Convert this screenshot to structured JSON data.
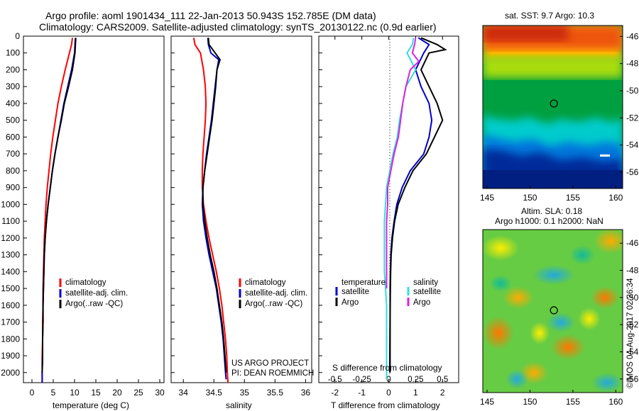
{
  "title_line1": "Argo profile: aoml 1901434_111 22-Jan-2013 50.943S 152.785E (DM data)",
  "title_line2": "Climatology: CARS2009. Satellite-adjusted climatology: synTS_20130122.nc (0.9d earlier)",
  "credit_line1": "US ARGO PROJECT",
  "credit_line2": "PI: DEAN ROEMMICH",
  "watermark": "©IMOS 04-Aug-2017 02:36:34",
  "colors": {
    "climatology": "#ff0000",
    "satellite": "#0000cc",
    "argo": "#000000",
    "s_satellite": "#33dddd",
    "s_argo": "#dd22dd"
  },
  "chart_data": [
    {
      "type": "line",
      "xlabel": "temperature (deg C)",
      "ylabel": "",
      "xlim": [
        -2,
        31
      ],
      "ylim": [
        2060,
        0
      ],
      "xticks": [
        0,
        5,
        10,
        15,
        20,
        25,
        30
      ],
      "yticks": [
        0,
        100,
        200,
        300,
        400,
        500,
        600,
        700,
        800,
        900,
        1000,
        1100,
        1200,
        1300,
        1400,
        1500,
        1600,
        1700,
        1800,
        1900,
        2000
      ],
      "legend": [
        "climatology",
        "satellite-adj. clim.",
        "Argo(..raw -QC)"
      ],
      "series": [
        {
          "name": "climatology",
          "points": [
            [
              9.5,
              10
            ],
            [
              9.3,
              50
            ],
            [
              8.8,
              100
            ],
            [
              7.8,
              200
            ],
            [
              6.9,
              300
            ],
            [
              6.1,
              400
            ],
            [
              5.5,
              500
            ],
            [
              4.9,
              600
            ],
            [
              4.4,
              700
            ],
            [
              4.0,
              800
            ],
            [
              3.6,
              900
            ],
            [
              3.3,
              1000
            ],
            [
              3.1,
              1100
            ],
            [
              2.9,
              1200
            ],
            [
              2.8,
              1300
            ],
            [
              2.7,
              1400
            ],
            [
              2.6,
              1500
            ],
            [
              2.6,
              1600
            ],
            [
              2.5,
              1700
            ],
            [
              2.5,
              1800
            ],
            [
              2.4,
              1900
            ],
            [
              2.4,
              2000
            ],
            [
              2.4,
              2060
            ]
          ]
        },
        {
          "name": "satellite-adj. clim.",
          "points": [
            [
              10.2,
              10
            ],
            [
              10.1,
              50
            ],
            [
              10.0,
              100
            ],
            [
              9.3,
              200
            ],
            [
              8.4,
              300
            ],
            [
              7.5,
              400
            ],
            [
              6.8,
              500
            ],
            [
              6.1,
              600
            ],
            [
              5.4,
              700
            ],
            [
              4.8,
              800
            ],
            [
              4.3,
              900
            ],
            [
              3.8,
              1000
            ],
            [
              3.4,
              1100
            ],
            [
              3.1,
              1200
            ],
            [
              2.9,
              1300
            ],
            [
              2.8,
              1400
            ],
            [
              2.7,
              1500
            ],
            [
              2.6,
              1600
            ],
            [
              2.6,
              1700
            ],
            [
              2.5,
              1800
            ],
            [
              2.5,
              1900
            ],
            [
              2.4,
              2000
            ],
            [
              2.4,
              2060
            ]
          ]
        },
        {
          "name": "Argo(..raw -QC)",
          "points": [
            [
              10.3,
              10
            ],
            [
              10.2,
              50
            ],
            [
              10.1,
              100
            ],
            [
              9.5,
              200
            ],
            [
              8.6,
              300
            ],
            [
              7.6,
              400
            ],
            [
              6.9,
              500
            ],
            [
              6.1,
              600
            ],
            [
              5.4,
              700
            ],
            [
              4.8,
              800
            ],
            [
              4.3,
              900
            ],
            [
              3.8,
              1000
            ],
            [
              3.4,
              1100
            ],
            [
              3.1,
              1200
            ],
            [
              2.9,
              1300
            ],
            [
              2.8,
              1400
            ],
            [
              2.7,
              1500
            ],
            [
              2.6,
              1600
            ],
            [
              2.6,
              1700
            ],
            [
              2.5,
              1800
            ],
            [
              2.5,
              1900
            ],
            [
              2.4,
              2000
            ]
          ]
        }
      ]
    },
    {
      "type": "line",
      "xlabel": "salinity",
      "xlim": [
        33.8,
        36.1
      ],
      "ylim": [
        2060,
        0
      ],
      "xticks": [
        34,
        34.5,
        35,
        35.5,
        36
      ],
      "legend": [
        "climatology",
        "satellite-adj. clim.",
        "Argo(..raw -QC)"
      ],
      "series": [
        {
          "name": "climatology",
          "points": [
            [
              34.17,
              10
            ],
            [
              34.19,
              50
            ],
            [
              34.28,
              100
            ],
            [
              34.33,
              200
            ],
            [
              34.36,
              300
            ],
            [
              34.37,
              400
            ],
            [
              34.36,
              500
            ],
            [
              34.34,
              600
            ],
            [
              34.32,
              700
            ],
            [
              34.31,
              800
            ],
            [
              34.31,
              900
            ],
            [
              34.33,
              1000
            ],
            [
              34.37,
              1100
            ],
            [
              34.42,
              1200
            ],
            [
              34.48,
              1300
            ],
            [
              34.54,
              1400
            ],
            [
              34.59,
              1500
            ],
            [
              34.63,
              1600
            ],
            [
              34.66,
              1700
            ],
            [
              34.69,
              1800
            ],
            [
              34.71,
              1900
            ],
            [
              34.72,
              2000
            ],
            [
              34.73,
              2060
            ]
          ]
        },
        {
          "name": "satellite-adj. clim.",
          "points": [
            [
              34.4,
              10
            ],
            [
              34.41,
              50
            ],
            [
              34.45,
              100
            ],
            [
              34.58,
              140
            ],
            [
              34.55,
              200
            ],
            [
              34.52,
              300
            ],
            [
              34.49,
              400
            ],
            [
              34.46,
              500
            ],
            [
              34.42,
              600
            ],
            [
              34.38,
              700
            ],
            [
              34.35,
              800
            ],
            [
              34.32,
              900
            ],
            [
              34.31,
              1000
            ],
            [
              34.33,
              1100
            ],
            [
              34.37,
              1200
            ],
            [
              34.42,
              1300
            ],
            [
              34.48,
              1400
            ],
            [
              34.54,
              1500
            ],
            [
              34.58,
              1600
            ],
            [
              34.62,
              1700
            ],
            [
              34.65,
              1800
            ],
            [
              34.67,
              1900
            ],
            [
              34.69,
              2000
            ],
            [
              34.7,
              2040
            ]
          ]
        },
        {
          "name": "Argo(..raw -QC)",
          "points": [
            [
              34.41,
              10
            ],
            [
              34.42,
              50
            ],
            [
              34.52,
              100
            ],
            [
              34.6,
              140
            ],
            [
              34.55,
              200
            ],
            [
              34.53,
              300
            ],
            [
              34.5,
              400
            ],
            [
              34.47,
              500
            ],
            [
              34.43,
              600
            ],
            [
              34.39,
              700
            ],
            [
              34.35,
              800
            ],
            [
              34.32,
              900
            ],
            [
              34.32,
              1000
            ],
            [
              34.35,
              1100
            ],
            [
              34.39,
              1200
            ],
            [
              34.44,
              1300
            ],
            [
              34.5,
              1400
            ],
            [
              34.55,
              1500
            ],
            [
              34.59,
              1600
            ],
            [
              34.63,
              1700
            ],
            [
              34.66,
              1800
            ],
            [
              34.68,
              1900
            ],
            [
              34.7,
              2000
            ]
          ]
        }
      ]
    },
    {
      "type": "line",
      "xlabel": "T difference from climatology",
      "top_label": "S difference from climatology",
      "xlim": [
        -2.6,
        2.6
      ],
      "ylim": [
        2060,
        0
      ],
      "xticks_T": [
        -2,
        -1,
        0,
        1,
        2
      ],
      "xticks_S": [
        -0.5,
        -0.25,
        0,
        0.25,
        0.5
      ],
      "legend_headers": [
        "temperature",
        "salinity"
      ],
      "legend": [
        "satellite",
        "Argo",
        "satellite",
        "Argo"
      ],
      "series": [
        {
          "name": "T satellite",
          "points": [
            [
              1.1,
              10
            ],
            [
              1.5,
              50
            ],
            [
              1.3,
              100
            ],
            [
              1.0,
              200
            ],
            [
              1.2,
              300
            ],
            [
              1.5,
              400
            ],
            [
              1.6,
              500
            ],
            [
              1.5,
              600
            ],
            [
              1.3,
              700
            ],
            [
              0.8,
              800
            ],
            [
              0.5,
              900
            ],
            [
              0.3,
              1000
            ],
            [
              0.2,
              1100
            ],
            [
              0.12,
              1200
            ],
            [
              0.08,
              1300
            ],
            [
              0.06,
              1400
            ],
            [
              0.05,
              1500
            ],
            [
              0.05,
              1700
            ],
            [
              0.04,
              1900
            ],
            [
              0.04,
              2000
            ]
          ]
        },
        {
          "name": "T Argo",
          "points": [
            [
              1.2,
              10
            ],
            [
              1.8,
              50
            ],
            [
              2.1,
              80
            ],
            [
              1.5,
              100
            ],
            [
              1.2,
              200
            ],
            [
              1.5,
              300
            ],
            [
              1.8,
              400
            ],
            [
              2.0,
              500
            ],
            [
              1.7,
              600
            ],
            [
              1.4,
              700
            ],
            [
              0.9,
              800
            ],
            [
              0.6,
              900
            ],
            [
              0.35,
              1000
            ],
            [
              0.22,
              1100
            ],
            [
              0.14,
              1200
            ],
            [
              0.09,
              1300
            ],
            [
              0.07,
              1400
            ],
            [
              0.06,
              1500
            ],
            [
              0.05,
              1700
            ],
            [
              0.05,
              1900
            ],
            [
              0.05,
              2000
            ]
          ]
        },
        {
          "name": "S satellite",
          "points": [
            [
              0.23,
              10
            ],
            [
              0.22,
              50
            ],
            [
              0.17,
              100
            ],
            [
              0.25,
              200
            ],
            [
              0.16,
              300
            ],
            [
              0.13,
              400
            ],
            [
              0.1,
              500
            ],
            [
              0.08,
              600
            ],
            [
              0.04,
              700
            ],
            [
              0.01,
              800
            ],
            [
              -0.02,
              900
            ],
            [
              -0.03,
              1000
            ],
            [
              -0.04,
              1100
            ],
            [
              -0.04,
              1200
            ],
            [
              -0.04,
              1300
            ],
            [
              -0.04,
              1400
            ],
            [
              -0.03,
              1500
            ],
            [
              -0.02,
              1600
            ],
            [
              -0.02,
              1700
            ],
            [
              -0.02,
              1800
            ],
            [
              -0.02,
              1900
            ],
            [
              -0.02,
              2000
            ],
            [
              -0.02,
              2040
            ]
          ]
        },
        {
          "name": "S Argo",
          "points": [
            [
              0.25,
              10
            ],
            [
              0.24,
              50
            ],
            [
              0.22,
              100
            ],
            [
              0.28,
              150
            ],
            [
              0.2,
              200
            ],
            [
              0.16,
              300
            ],
            [
              0.13,
              400
            ],
            [
              0.11,
              500
            ],
            [
              0.09,
              600
            ],
            [
              0.05,
              700
            ],
            [
              0.02,
              800
            ],
            [
              -0.01,
              900
            ],
            [
              -0.01,
              1000
            ],
            [
              -0.02,
              1100
            ],
            [
              -0.02,
              1200
            ],
            [
              -0.02,
              1300
            ],
            [
              -0.02,
              1400
            ],
            [
              -0.02,
              1500
            ]
          ]
        }
      ]
    },
    {
      "type": "heatmap",
      "title": "sat. SST: 9.7 Argo: 10.3",
      "xlim": [
        144.5,
        160.8
      ],
      "ylim": [
        -57.2,
        -45.2
      ],
      "xticks": [
        145,
        150,
        155,
        160
      ],
      "yticks": [
        -46,
        -48,
        -50,
        -52,
        -54,
        -56
      ],
      "float_position": [
        152.785,
        -50.943
      ]
    },
    {
      "type": "heatmap",
      "title_line1": "Altim. SLA: 0.18",
      "title_line2": "Argo h1000: 0.1 h2000: NaN",
      "xlim": [
        144.5,
        160.8
      ],
      "ylim": [
        -57.0,
        -45.0
      ],
      "xticks": [
        145,
        150,
        155,
        160
      ],
      "yticks": [
        -46,
        -48,
        -50,
        -52,
        -54,
        -56
      ],
      "float_position": [
        152.785,
        -50.943
      ]
    }
  ]
}
